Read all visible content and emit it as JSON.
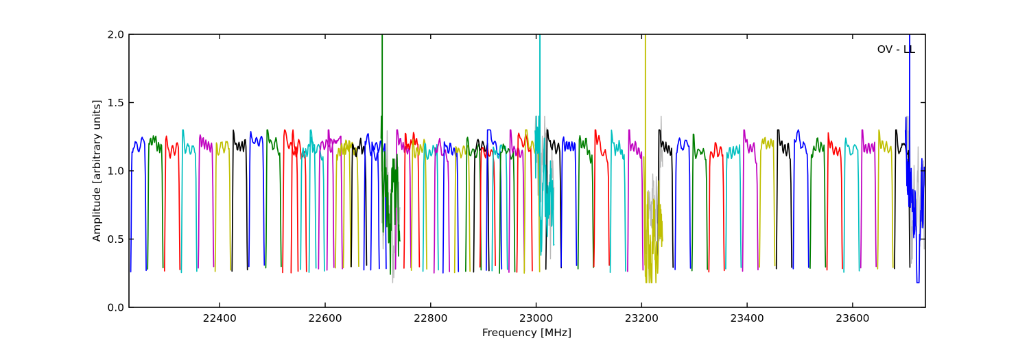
{
  "figure": {
    "corner_label": "OV - LL"
  },
  "chart_data": {
    "type": "line",
    "title": "",
    "xlabel": "Frequency [MHz]",
    "ylabel": "Amplitude [arbitrary units]",
    "annotation": "OV - LL",
    "xlim": [
      22228,
      23738
    ],
    "ylim": [
      0.0,
      2.0
    ],
    "xticks": [
      22400,
      22600,
      22800,
      23000,
      23200,
      23400,
      23600
    ],
    "xtick_labels": [
      "22400",
      "22600",
      "22800",
      "23000",
      "23200",
      "23400",
      "23600"
    ],
    "yticks": [
      0.0,
      0.5,
      1.0,
      1.5,
      2.0
    ],
    "ytick_labels": [
      "0.0",
      "0.5",
      "1.0",
      "1.5",
      "2.0"
    ],
    "grid": false,
    "legend": "none",
    "palette": {
      "b": "#0000ff",
      "g": "#007f00",
      "r": "#ff0000",
      "c": "#00bfbf",
      "m": "#bf00bf",
      "y": "#bfbf00",
      "k": "#000000",
      "underlay": "#b8b8b8"
    },
    "bandpass_shape": {
      "plateau_level": 1.17,
      "plateau_min": 1.12,
      "plateau_max": 1.3,
      "floor_level": 0.27,
      "normal_halfwidth_mhz": 14.6,
      "noisy_halfwidth_mhz": 18,
      "noise_min": 0.18,
      "noise_max": 1.4,
      "spike_top": 2.0
    },
    "subbands": [
      {
        "center": 22246,
        "color": "b"
      },
      {
        "center": 22278,
        "color": "g"
      },
      {
        "center": 22310,
        "color": "r"
      },
      {
        "center": 22342,
        "color": "c"
      },
      {
        "center": 22374,
        "color": "m"
      },
      {
        "center": 22406,
        "color": "y"
      },
      {
        "center": 22438,
        "color": "k"
      },
      {
        "center": 22470,
        "color": "b"
      },
      {
        "center": 22502,
        "color": "g"
      },
      {
        "center": 22534,
        "color": "r"
      },
      {
        "center": 22550,
        "color": "r"
      },
      {
        "center": 22568,
        "color": "c"
      },
      {
        "center": 22584,
        "color": "c"
      },
      {
        "center": 22602,
        "color": "m"
      },
      {
        "center": 22618,
        "color": "m"
      },
      {
        "center": 22634,
        "color": "y"
      },
      {
        "center": 22649,
        "color": "y"
      },
      {
        "center": 22664,
        "color": "k"
      },
      {
        "center": 22688,
        "color": "b"
      },
      {
        "center": 22701,
        "color": "b"
      },
      {
        "center": 22748,
        "color": "m"
      },
      {
        "center": 22764,
        "color": "r"
      },
      {
        "center": 22778,
        "color": "y"
      },
      {
        "center": 22800,
        "color": "c"
      },
      {
        "center": 22821,
        "color": "m"
      },
      {
        "center": 22838,
        "color": "b"
      },
      {
        "center": 22860,
        "color": "y"
      },
      {
        "center": 22881,
        "color": "g"
      },
      {
        "center": 22896,
        "color": "k"
      },
      {
        "center": 22908,
        "color": "r"
      },
      {
        "center": 22920,
        "color": "b"
      },
      {
        "center": 22931,
        "color": "c"
      },
      {
        "center": 22945,
        "color": "g"
      },
      {
        "center": 22963,
        "color": "m"
      },
      {
        "center": 22978,
        "color": "r"
      },
      {
        "center": 22992,
        "color": "y"
      },
      {
        "center": 23033,
        "color": "k"
      },
      {
        "center": 23062,
        "color": "b"
      },
      {
        "center": 23094,
        "color": "g"
      },
      {
        "center": 23124,
        "color": "r"
      },
      {
        "center": 23155,
        "color": "c"
      },
      {
        "center": 23188,
        "color": "m"
      },
      {
        "center": 23245,
        "color": "k"
      },
      {
        "center": 23278,
        "color": "b"
      },
      {
        "center": 23310,
        "color": "g"
      },
      {
        "center": 23342,
        "color": "r"
      },
      {
        "center": 23374,
        "color": "c"
      },
      {
        "center": 23406,
        "color": "m"
      },
      {
        "center": 23438,
        "color": "y"
      },
      {
        "center": 23470,
        "color": "k"
      },
      {
        "center": 23502,
        "color": "b"
      },
      {
        "center": 23534,
        "color": "g"
      },
      {
        "center": 23566,
        "color": "r"
      },
      {
        "center": 23598,
        "color": "c"
      },
      {
        "center": 23630,
        "color": "m"
      },
      {
        "center": 23662,
        "color": "y"
      },
      {
        "center": 23694,
        "color": "k"
      }
    ],
    "noisy_subbands": [
      {
        "center": 22724,
        "color": "g",
        "spike_freq": 22708
      },
      {
        "center": 23016,
        "color": "c",
        "spike_freq": 23007
      },
      {
        "center": 23222,
        "color": "y",
        "spike_freq": 23207
      },
      {
        "center": 23718,
        "color": "b",
        "spike_freq": 23708
      }
    ]
  }
}
